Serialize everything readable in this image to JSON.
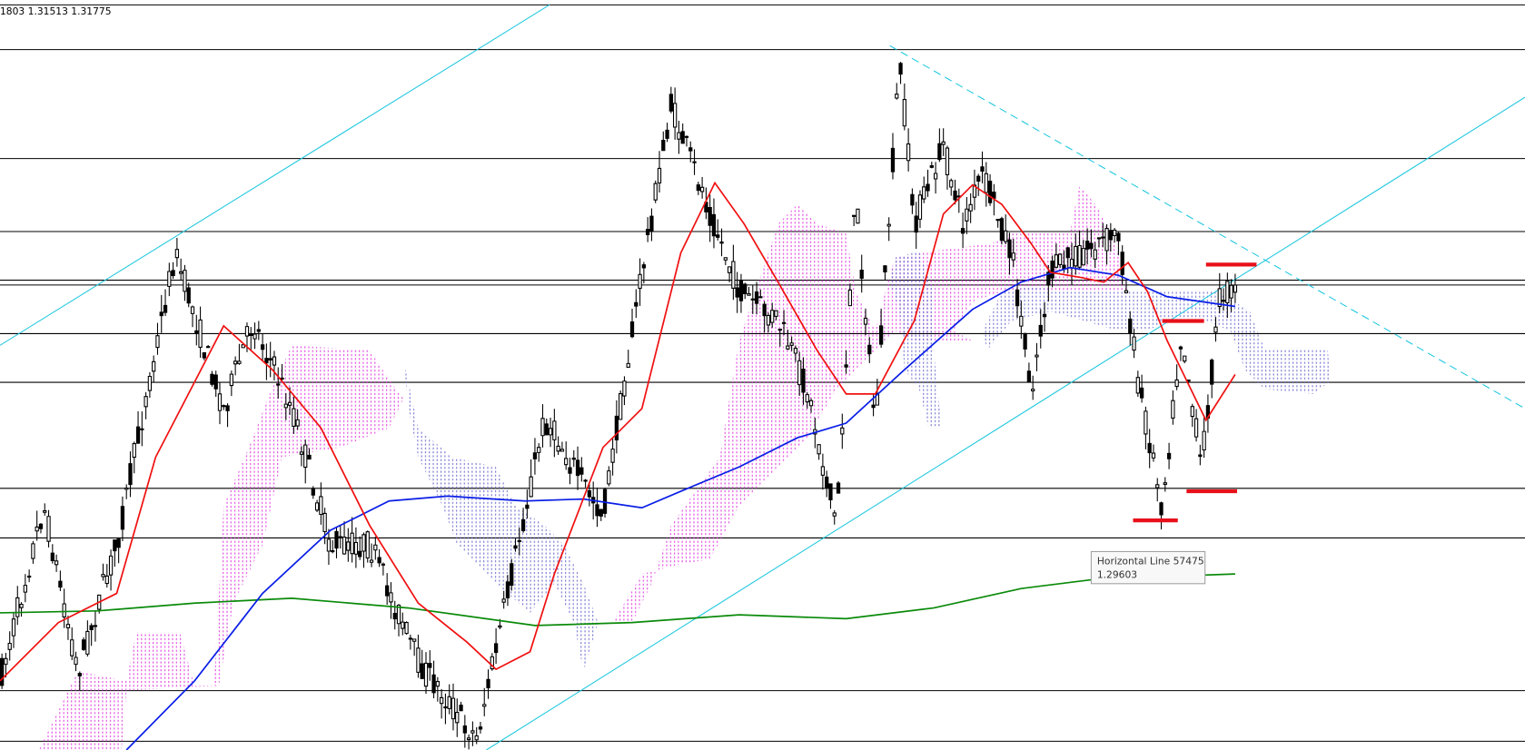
{
  "header": {
    "quote": "1803 1.31513 1.31775"
  },
  "tooltip": {
    "title": "Horizontal Line 57475",
    "value": "1.29603"
  }
}
